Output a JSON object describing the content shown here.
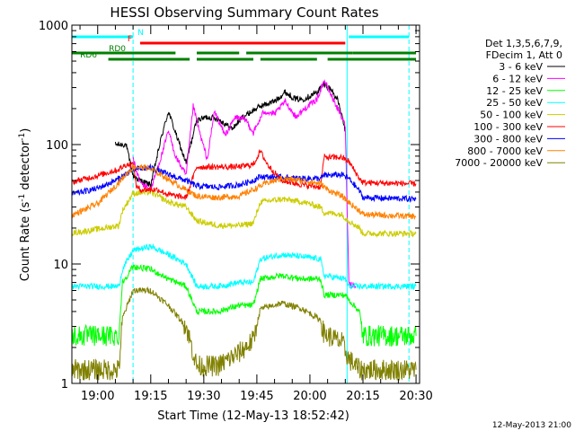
{
  "chart_data": {
    "type": "line",
    "title": "HESSI Observing Summary Count Rates",
    "xlabel": "Start Time (12-May-13 18:52:42)",
    "ylabel": "Count Rate (s",
    "ylabel_sup": "-1",
    "ylabel_tail": " detector",
    "ylabel_end": ")",
    "y_scale": "log",
    "ylim": [
      1,
      1000
    ],
    "xlim": [
      "18:52:42",
      "20:31:00"
    ],
    "y_ticks": [
      {
        "value": 1,
        "label": "1"
      },
      {
        "value": 10,
        "label": "10"
      },
      {
        "value": 100,
        "label": "100"
      },
      {
        "value": 1000,
        "label": "1000"
      }
    ],
    "x_ticks": [
      {
        "value": "19:00",
        "label": "19:00"
      },
      {
        "value": "19:15",
        "label": "19:15"
      },
      {
        "value": "19:30",
        "label": "19:30"
      },
      {
        "value": "19:45",
        "label": "19:45"
      },
      {
        "value": "20:00",
        "label": "20:00"
      },
      {
        "value": "20:15",
        "label": "20:15"
      },
      {
        "value": "20:30",
        "label": "20:30"
      }
    ],
    "legend_header": [
      "Det 1,3,5,6,7,9,",
      "FDecim 1, Att 0"
    ],
    "legend_position": "right",
    "series": [
      {
        "name": "3 - 6 keV",
        "color": "#000000",
        "points": [
          [
            "19:05",
            100
          ],
          [
            "19:08",
            100
          ],
          [
            "19:10",
            55
          ],
          [
            "19:12",
            50
          ],
          [
            "19:15",
            46
          ],
          [
            "19:18",
            115
          ],
          [
            "19:20",
            190
          ],
          [
            "19:22",
            125
          ],
          [
            "19:25",
            70
          ],
          [
            "19:28",
            160
          ],
          [
            "19:31",
            170
          ],
          [
            "19:34",
            165
          ],
          [
            "19:38",
            135
          ],
          [
            "19:41",
            170
          ],
          [
            "19:43",
            185
          ],
          [
            "19:46",
            210
          ],
          [
            "19:50",
            230
          ],
          [
            "19:53",
            275
          ],
          [
            "19:56",
            240
          ],
          [
            "19:58",
            240
          ],
          [
            "20:00",
            255
          ],
          [
            "20:02",
            275
          ],
          [
            "20:04",
            320
          ],
          [
            "20:06",
            290
          ],
          [
            "20:08",
            230
          ],
          [
            "20:10",
            130
          ]
        ]
      },
      {
        "name": "6 - 12 keV",
        "color": "#ff00ff",
        "points": [
          [
            "19:10",
            75
          ],
          [
            "19:12",
            48
          ],
          [
            "19:15",
            42
          ],
          [
            "19:18",
            80
          ],
          [
            "19:20",
            130
          ],
          [
            "19:22",
            80
          ],
          [
            "19:25",
            55
          ],
          [
            "19:27",
            210
          ],
          [
            "19:29",
            120
          ],
          [
            "19:31",
            75
          ],
          [
            "19:33",
            190
          ],
          [
            "19:36",
            120
          ],
          [
            "19:39",
            170
          ],
          [
            "19:42",
            160
          ],
          [
            "19:44",
            125
          ],
          [
            "19:47",
            190
          ],
          [
            "19:50",
            180
          ],
          [
            "19:53",
            230
          ],
          [
            "19:56",
            170
          ],
          [
            "19:59",
            205
          ],
          [
            "20:02",
            240
          ],
          [
            "20:04",
            345
          ],
          [
            "20:06",
            260
          ],
          [
            "20:08",
            195
          ],
          [
            "20:10",
            145
          ],
          [
            "20:11",
            7
          ],
          [
            "20:13",
            6.5
          ]
        ]
      },
      {
        "name": "12 - 25 keV",
        "color": "#00ff00",
        "points": [
          [
            "18:52",
            2.5
          ],
          [
            "19:06",
            2.5
          ],
          [
            "19:07",
            7
          ],
          [
            "19:10",
            9.5
          ],
          [
            "19:15",
            9
          ],
          [
            "19:20",
            7.5
          ],
          [
            "19:25",
            6.5
          ],
          [
            "19:28",
            4
          ],
          [
            "19:34",
            4
          ],
          [
            "19:40",
            4.5
          ],
          [
            "19:44",
            4.5
          ],
          [
            "19:46",
            7.5
          ],
          [
            "19:52",
            8
          ],
          [
            "19:58",
            7.5
          ],
          [
            "20:03",
            7.5
          ],
          [
            "20:04",
            5.5
          ],
          [
            "20:10",
            5.5
          ],
          [
            "20:11",
            5
          ],
          [
            "20:14",
            4
          ],
          [
            "20:15",
            2.5
          ],
          [
            "20:30",
            2.5
          ]
        ]
      },
      {
        "name": "25 - 50 keV",
        "color": "#00ffff",
        "points": [
          [
            "18:52",
            6.5
          ],
          [
            "19:06",
            6.5
          ],
          [
            "19:07",
            9
          ],
          [
            "19:10",
            13
          ],
          [
            "19:15",
            14
          ],
          [
            "19:20",
            12
          ],
          [
            "19:25",
            10
          ],
          [
            "19:28",
            6.5
          ],
          [
            "19:34",
            6.5
          ],
          [
            "19:40",
            7
          ],
          [
            "19:44",
            7
          ],
          [
            "19:46",
            11
          ],
          [
            "19:52",
            12
          ],
          [
            "19:58",
            11.5
          ],
          [
            "20:03",
            11
          ],
          [
            "20:04",
            8
          ],
          [
            "20:10",
            7.5
          ],
          [
            "20:11",
            6.5
          ],
          [
            "20:30",
            6.5
          ]
        ]
      },
      {
        "name": "50 - 100 keV",
        "color": "#cccc00",
        "points": [
          [
            "18:52",
            18
          ],
          [
            "19:02",
            20
          ],
          [
            "19:06",
            21
          ],
          [
            "19:07",
            28
          ],
          [
            "19:10",
            39
          ],
          [
            "19:15",
            40
          ],
          [
            "19:20",
            33
          ],
          [
            "19:25",
            30
          ],
          [
            "19:28",
            23
          ],
          [
            "19:34",
            21
          ],
          [
            "19:40",
            21
          ],
          [
            "19:44",
            22
          ],
          [
            "19:46",
            33
          ],
          [
            "19:52",
            35
          ],
          [
            "19:58",
            33
          ],
          [
            "20:03",
            30
          ],
          [
            "20:04",
            27
          ],
          [
            "20:09",
            26
          ],
          [
            "20:11",
            23
          ],
          [
            "20:14",
            20
          ],
          [
            "20:15",
            18
          ],
          [
            "20:30",
            18
          ]
        ]
      },
      {
        "name": "100 - 300 keV",
        "color": "#ff0000",
        "points": [
          [
            "18:52",
            48
          ],
          [
            "19:00",
            55
          ],
          [
            "19:06",
            62
          ],
          [
            "19:08",
            68
          ],
          [
            "19:10",
            68
          ],
          [
            "19:11",
            44
          ],
          [
            "19:12",
            42
          ],
          [
            "19:17",
            42
          ],
          [
            "19:20",
            38
          ],
          [
            "19:25",
            36
          ],
          [
            "19:28",
            65
          ],
          [
            "19:34",
            65
          ],
          [
            "19:40",
            65
          ],
          [
            "19:44",
            68
          ],
          [
            "19:46",
            88
          ],
          [
            "19:48",
            68
          ],
          [
            "19:52",
            50
          ],
          [
            "19:58",
            46
          ],
          [
            "20:03",
            44
          ],
          [
            "20:04",
            78
          ],
          [
            "20:09",
            78
          ],
          [
            "20:11",
            72
          ],
          [
            "20:14",
            52
          ],
          [
            "20:15",
            48
          ],
          [
            "20:30",
            47
          ]
        ]
      },
      {
        "name": "300 - 800 keV",
        "color": "#0000ff",
        "points": [
          [
            "18:52",
            38
          ],
          [
            "19:00",
            43
          ],
          [
            "19:05",
            50
          ],
          [
            "19:10",
            62
          ],
          [
            "19:15",
            64
          ],
          [
            "19:20",
            56
          ],
          [
            "19:25",
            50
          ],
          [
            "19:28",
            45
          ],
          [
            "19:34",
            44
          ],
          [
            "19:40",
            46
          ],
          [
            "19:44",
            50
          ],
          [
            "19:46",
            54
          ],
          [
            "19:52",
            53
          ],
          [
            "19:58",
            52
          ],
          [
            "20:03",
            52
          ],
          [
            "20:04",
            55
          ],
          [
            "20:09",
            56
          ],
          [
            "20:11",
            52
          ],
          [
            "20:14",
            41
          ],
          [
            "20:15",
            36
          ],
          [
            "20:30",
            35
          ]
        ]
      },
      {
        "name": "800 - 7000 keV",
        "color": "#ff8000",
        "points": [
          [
            "18:52",
            25
          ],
          [
            "19:00",
            32
          ],
          [
            "19:05",
            45
          ],
          [
            "19:10",
            65
          ],
          [
            "19:14",
            64
          ],
          [
            "19:18",
            56
          ],
          [
            "19:22",
            47
          ],
          [
            "19:28",
            37
          ],
          [
            "19:34",
            36
          ],
          [
            "19:40",
            37
          ],
          [
            "19:44",
            42
          ],
          [
            "19:48",
            48
          ],
          [
            "19:52",
            52
          ],
          [
            "19:58",
            50
          ],
          [
            "20:03",
            47
          ],
          [
            "20:05",
            42
          ],
          [
            "20:09",
            37
          ],
          [
            "20:12",
            31
          ],
          [
            "20:14",
            28
          ],
          [
            "20:15",
            26
          ],
          [
            "20:30",
            25
          ]
        ]
      },
      {
        "name": "7000 - 20000 keV",
        "color": "#808000",
        "points": [
          [
            "18:52",
            1.3
          ],
          [
            "19:06",
            1.3
          ],
          [
            "19:07",
            3.5
          ],
          [
            "19:10",
            6
          ],
          [
            "19:15",
            6
          ],
          [
            "19:20",
            4.5
          ],
          [
            "19:25",
            3
          ],
          [
            "19:28",
            1.4
          ],
          [
            "19:34",
            1.4
          ],
          [
            "19:40",
            1.8
          ],
          [
            "19:44",
            2.3
          ],
          [
            "19:46",
            4.2
          ],
          [
            "19:52",
            4.7
          ],
          [
            "19:58",
            4.2
          ],
          [
            "20:03",
            3.4
          ],
          [
            "20:04",
            2.6
          ],
          [
            "20:09",
            2.2
          ],
          [
            "20:11",
            1.6
          ],
          [
            "20:14",
            1.3
          ],
          [
            "20:30",
            1.3
          ]
        ]
      }
    ],
    "flags": [
      {
        "label": "N",
        "color": "#00ffff",
        "row": 1,
        "segments": [
          [
            "18:52",
            "19:10"
          ],
          [
            "20:11",
            "20:28"
          ]
        ]
      },
      {
        "label": "F",
        "color": "#ff0000",
        "row": 2,
        "segments": [
          [
            "19:12",
            "20:10"
          ]
        ]
      },
      {
        "label": "RD0",
        "color": "#008000",
        "row": 3,
        "segments": [
          [
            "18:52",
            "19:22"
          ],
          [
            "19:28",
            "19:40"
          ],
          [
            "19:42",
            "20:12"
          ],
          [
            "20:12",
            "20:30"
          ]
        ]
      },
      {
        "label": "RD6",
        "color": "#008000",
        "row": 4,
        "segments": [
          [
            "19:03",
            "19:26"
          ],
          [
            "19:28",
            "19:44"
          ],
          [
            "19:46",
            "20:02"
          ],
          [
            "20:05",
            "20:30"
          ]
        ]
      }
    ],
    "vlines": [
      {
        "time": "18:52:42",
        "color": "#00ffff",
        "style": "solid"
      },
      {
        "time": "19:10",
        "color": "#00ffff",
        "style": "dashed"
      },
      {
        "time": "20:10:30",
        "color": "#00ffff",
        "style": "solid"
      },
      {
        "time": "20:28",
        "color": "#00ffff",
        "style": "dashed"
      }
    ]
  },
  "footer": {
    "date_stamp": "12-May-2013 21:00"
  }
}
